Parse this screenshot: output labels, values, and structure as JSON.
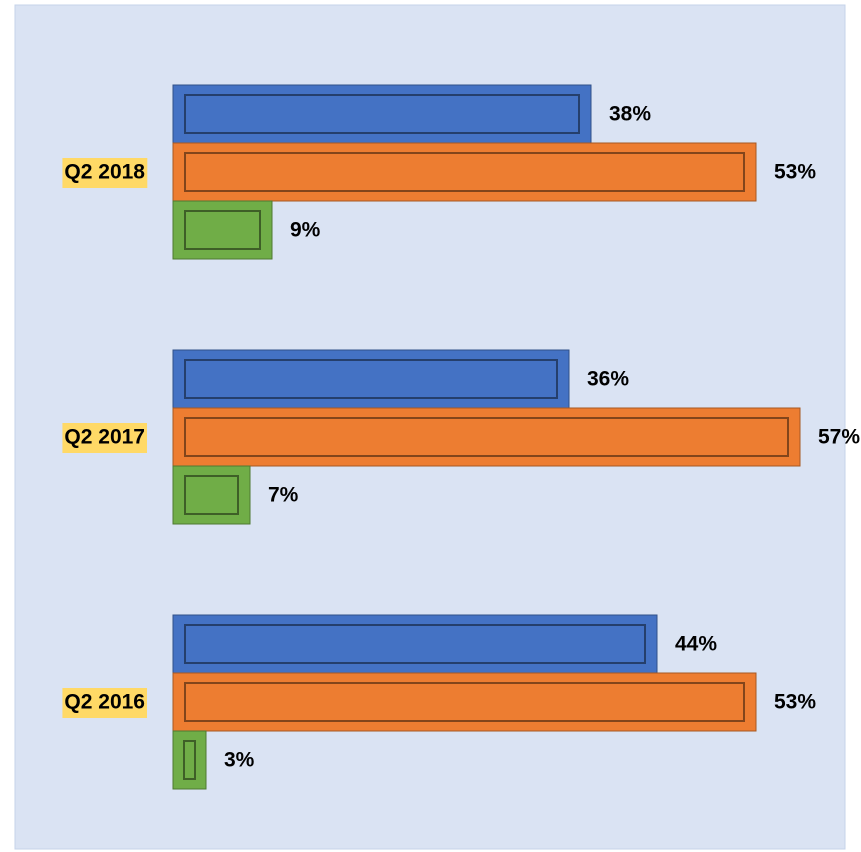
{
  "chart_data": {
    "type": "bar",
    "orientation": "horizontal",
    "categories": [
      "Q2 2018",
      "Q2 2017",
      "Q2 2016"
    ],
    "series": [
      {
        "color": "#4472c4",
        "values": [
          38,
          36,
          44
        ],
        "value_labels": [
          "38%",
          "36%",
          "44%"
        ]
      },
      {
        "color": "#ed7d31",
        "values": [
          53,
          57,
          53
        ],
        "value_labels": [
          "53%",
          "57%",
          "53%"
        ]
      },
      {
        "color": "#70ad47",
        "values": [
          9,
          7,
          3
        ],
        "value_labels": [
          "9%",
          "7%",
          "3%"
        ]
      }
    ],
    "category_label_highlight": "#ffd966"
  }
}
